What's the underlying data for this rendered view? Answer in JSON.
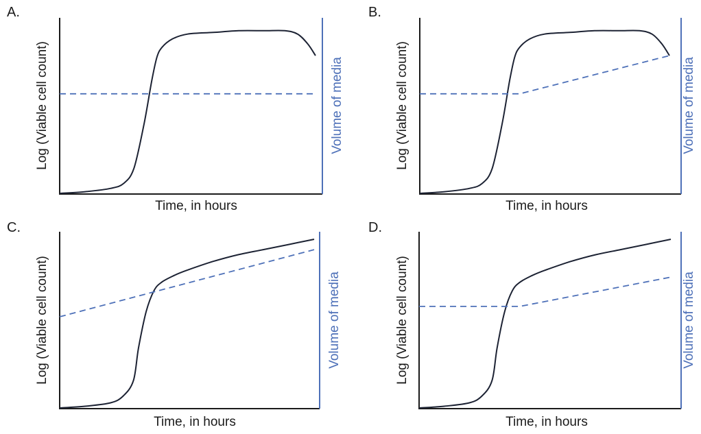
{
  "colors": {
    "cell_curve": "#1c2233",
    "media_line": "#4d70b8",
    "right_axis": "#4d70b8",
    "left_axis": "#1a1a1a",
    "text": "#1a1a1a"
  },
  "chart_data": [
    {
      "panel_label": "A.",
      "type": "line",
      "xlabel": "Time, in hours",
      "ylabel": "Log (Viable cell count)",
      "y2label": "Volume of media",
      "xlim": [
        0,
        1
      ],
      "ylim": [
        0,
        1
      ],
      "y2lim": [
        0,
        1
      ],
      "series": [
        {
          "axis": "left",
          "style": "solid",
          "color": "#1c2233",
          "x": [
            0.0,
            0.1,
            0.2,
            0.25,
            0.29,
            0.33,
            0.36,
            0.38,
            0.4,
            0.44,
            0.5,
            0.6,
            0.7,
            0.8,
            0.88,
            0.93,
            0.97,
            1.0
          ],
          "y": [
            0.0,
            0.01,
            0.03,
            0.06,
            0.15,
            0.42,
            0.68,
            0.82,
            0.88,
            0.93,
            0.96,
            0.97,
            0.98,
            0.98,
            0.98,
            0.96,
            0.9,
            0.83
          ]
        },
        {
          "axis": "right",
          "style": "dashed",
          "color": "#4d70b8",
          "x": [
            0.0,
            1.0
          ],
          "y": [
            0.6,
            0.6
          ]
        }
      ]
    },
    {
      "panel_label": "B.",
      "type": "line",
      "xlabel": "Time, in hours",
      "ylabel": "Log (Viable cell count)",
      "y2label": "Volume of media",
      "xlim": [
        0,
        1
      ],
      "ylim": [
        0,
        1
      ],
      "y2lim": [
        0,
        1
      ],
      "series": [
        {
          "axis": "left",
          "style": "solid",
          "color": "#1c2233",
          "x": [
            0.0,
            0.1,
            0.2,
            0.25,
            0.29,
            0.33,
            0.36,
            0.38,
            0.4,
            0.44,
            0.5,
            0.6,
            0.7,
            0.8,
            0.88,
            0.93,
            0.97,
            1.0
          ],
          "y": [
            0.0,
            0.01,
            0.03,
            0.06,
            0.15,
            0.42,
            0.68,
            0.82,
            0.88,
            0.93,
            0.96,
            0.97,
            0.98,
            0.98,
            0.98,
            0.96,
            0.9,
            0.83
          ]
        },
        {
          "axis": "right",
          "style": "dashed",
          "color": "#4d70b8",
          "x": [
            0.0,
            0.4,
            1.0
          ],
          "y": [
            0.6,
            0.6,
            0.83
          ]
        }
      ]
    },
    {
      "panel_label": "C.",
      "type": "line",
      "xlabel": "Time, in hours",
      "ylabel": "Log (Viable cell count)",
      "y2label": "Volume of media",
      "xlim": [
        0,
        1
      ],
      "ylim": [
        0,
        1
      ],
      "y2lim": [
        0,
        1
      ],
      "series": [
        {
          "axis": "left",
          "style": "solid",
          "color": "#1c2233",
          "x": [
            0.0,
            0.1,
            0.2,
            0.25,
            0.29,
            0.31,
            0.34,
            0.37,
            0.4,
            0.45,
            0.5,
            0.6,
            0.7,
            0.8,
            0.9,
            1.0
          ],
          "y": [
            0.0,
            0.01,
            0.03,
            0.07,
            0.16,
            0.35,
            0.56,
            0.68,
            0.73,
            0.77,
            0.8,
            0.85,
            0.89,
            0.92,
            0.95,
            0.98
          ]
        },
        {
          "axis": "right",
          "style": "dashed",
          "color": "#4d70b8",
          "x": [
            0.0,
            1.0
          ],
          "y": [
            0.53,
            0.92
          ]
        }
      ]
    },
    {
      "panel_label": "D.",
      "type": "line",
      "xlabel": "Time, in hours",
      "ylabel": "Log (Viable cell count)",
      "y2label": "Volume of media",
      "xlim": [
        0,
        1
      ],
      "ylim": [
        0,
        1
      ],
      "y2lim": [
        0,
        1
      ],
      "series": [
        {
          "axis": "left",
          "style": "solid",
          "color": "#1c2233",
          "x": [
            0.0,
            0.1,
            0.2,
            0.25,
            0.29,
            0.31,
            0.34,
            0.37,
            0.4,
            0.45,
            0.5,
            0.6,
            0.7,
            0.8,
            0.9,
            1.0
          ],
          "y": [
            0.0,
            0.01,
            0.03,
            0.07,
            0.16,
            0.35,
            0.56,
            0.68,
            0.73,
            0.77,
            0.8,
            0.85,
            0.89,
            0.92,
            0.95,
            0.98
          ]
        },
        {
          "axis": "right",
          "style": "dashed",
          "color": "#4d70b8",
          "x": [
            0.0,
            0.4,
            1.0
          ],
          "y": [
            0.59,
            0.59,
            0.76
          ]
        }
      ]
    }
  ]
}
